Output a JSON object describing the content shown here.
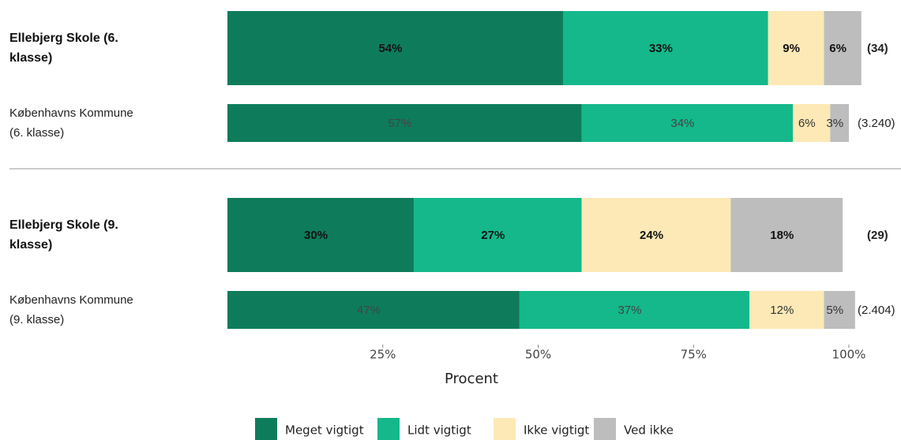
{
  "chart_data": {
    "type": "stacked_bar_horizontal",
    "categories": [
      "Ellebjerg Skole (6. klasse)",
      "Københavns Kommune (6. klasse)",
      "Ellebjerg Skole (9. klasse)",
      "Københavns Kommune (9. klasse)"
    ],
    "highlight": [
      true,
      false,
      true,
      false
    ],
    "counts": [
      "(34)",
      "(3.240)",
      "(29)",
      "(2.404)"
    ],
    "series": [
      {
        "name": "Meget vigtigt",
        "color": "#0e7c5b",
        "values": [
          54,
          57,
          30,
          47
        ]
      },
      {
        "name": "Lidt vigtigt",
        "color": "#14b88a",
        "values": [
          33,
          34,
          27,
          37
        ]
      },
      {
        "name": "Ikke vigtigt",
        "color": "#fde9b6",
        "values": [
          9,
          6,
          24,
          12
        ]
      },
      {
        "name": "Ved ikke",
        "color": "#bdbdbd",
        "values": [
          6,
          3,
          18,
          5
        ]
      }
    ],
    "xlim": [
      0,
      100
    ],
    "xticks": [
      {
        "value": 25,
        "label": "25%"
      },
      {
        "value": 50,
        "label": "50%"
      },
      {
        "value": 75,
        "label": "75%"
      },
      {
        "value": 100,
        "label": "100%"
      }
    ],
    "xlabel": "Procent"
  }
}
